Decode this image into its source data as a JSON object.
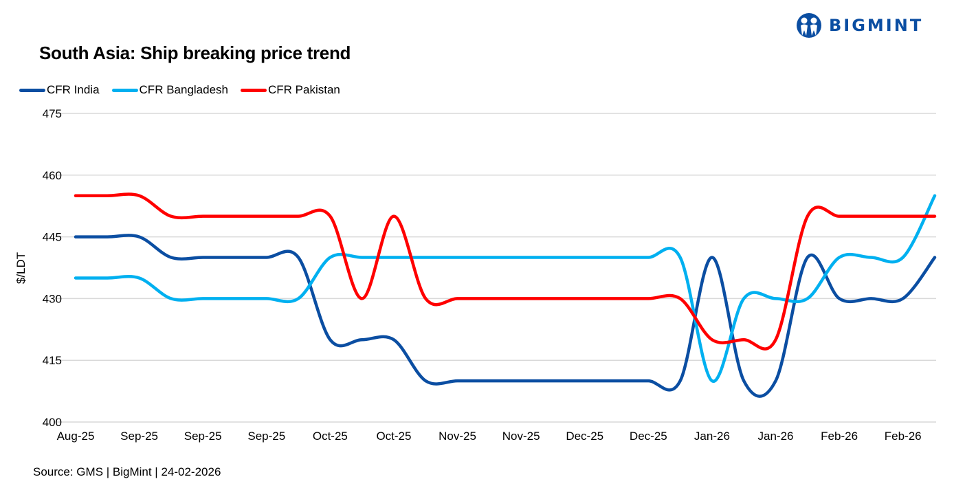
{
  "header": {
    "title": "South Asia: Ship breaking  price trend",
    "logo_text": "BIGMINT"
  },
  "footer": {
    "source": "Source: GMS | BigMint  | 24-02-2026"
  },
  "colors": {
    "india": "#0b4ea2",
    "bangladesh": "#00b0f0",
    "pakistan": "#ff0000",
    "grid": "#d9d9d9"
  },
  "chart_data": {
    "type": "line",
    "title": "South Asia: Ship breaking  price trend",
    "ylabel": "$/LDT",
    "xlabel": "",
    "ylim": [
      400,
      475
    ],
    "yticks": [
      400,
      415,
      430,
      445,
      460,
      475
    ],
    "grid": true,
    "legend": "top-left",
    "x_tick_labels": [
      "Aug-25",
      "Sep-25",
      "Sep-25",
      "Sep-25",
      "Oct-25",
      "Oct-25",
      "Nov-25",
      "Nov-25",
      "Dec-25",
      "Dec-25",
      "Jan-26",
      "Jan-26",
      "Feb-26",
      "Feb-26"
    ],
    "points_per_label": 2,
    "series": [
      {
        "name": "CFR India",
        "color": "#0b4ea2",
        "values": [
          445,
          445,
          445,
          440,
          440,
          440,
          440,
          440,
          420,
          420,
          420,
          410,
          410,
          410,
          410,
          410,
          410,
          410,
          410,
          410,
          440,
          410,
          410,
          440,
          430,
          430,
          430,
          440
        ]
      },
      {
        "name": "CFR Bangladesh",
        "color": "#00b0f0",
        "values": [
          435,
          435,
          435,
          430,
          430,
          430,
          430,
          430,
          440,
          440,
          440,
          440,
          440,
          440,
          440,
          440,
          440,
          440,
          440,
          440,
          410,
          430,
          430,
          430,
          440,
          440,
          440,
          455
        ]
      },
      {
        "name": "CFR Pakistan",
        "color": "#ff0000",
        "values": [
          455,
          455,
          455,
          450,
          450,
          450,
          450,
          450,
          450,
          430,
          450,
          430,
          430,
          430,
          430,
          430,
          430,
          430,
          430,
          430,
          420,
          420,
          420,
          450,
          450,
          450,
          450,
          450
        ]
      }
    ]
  }
}
